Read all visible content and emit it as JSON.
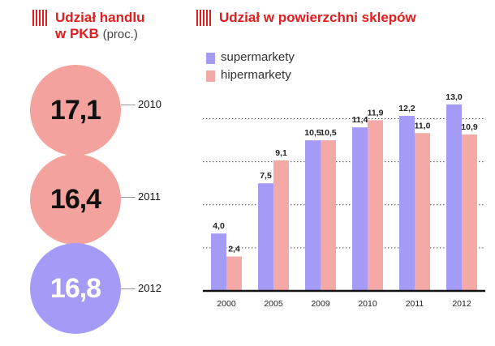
{
  "left_panel": {
    "title_line1": "Udział handlu",
    "title_line2": "w PKB",
    "unit": "(proc.)",
    "items": [
      {
        "value": "17,1",
        "year": "2010",
        "color": "#f4a29e"
      },
      {
        "value": "16,4",
        "year": "2011",
        "color": "#f4a29e"
      },
      {
        "value": "16,8",
        "year": "2012",
        "color": "#a49bf6"
      }
    ]
  },
  "right_panel": {
    "title": "Udział w powierzchni sklepów"
  },
  "colors": {
    "accent": "#e11d1d",
    "supermarkety": "#a49bf6",
    "hipermarkety": "#f4a9a7"
  },
  "chart_data": {
    "type": "bar",
    "categories": [
      "2000",
      "2005",
      "2009",
      "2010",
      "2011",
      "2012"
    ],
    "series": [
      {
        "name": "supermarkety",
        "values": [
          4.0,
          7.5,
          10.5,
          11.4,
          12.2,
          13.0
        ],
        "labels": [
          "4,0",
          "7,5",
          "10,5",
          "11,4",
          "12,2",
          "13,0"
        ]
      },
      {
        "name": "hipermarkety",
        "values": [
          2.4,
          9.1,
          10.5,
          11.9,
          11.0,
          10.9
        ],
        "labels": [
          "2,4",
          "9,1",
          "10,5",
          "11,9",
          "11,0",
          "10,9"
        ]
      }
    ],
    "ylim": [
      0,
      13.5
    ],
    "grid": true,
    "legend": "top-left"
  }
}
